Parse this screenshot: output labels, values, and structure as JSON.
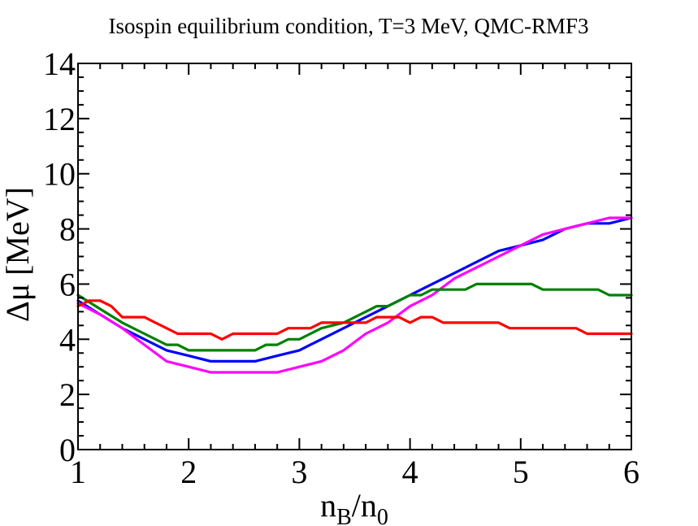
{
  "chart_data": {
    "type": "line",
    "title": "Isospin equilibrium condition, T=3 MeV, QMC-RMF3",
    "xlabel": {
      "base": "n",
      "sub1": "B",
      "sep": "/n",
      "sub2": "0"
    },
    "ylabel": {
      "symbol": "Δμ",
      "unit": " [MeV]"
    },
    "xlim": [
      1,
      6
    ],
    "ylim": [
      0,
      14
    ],
    "xticks": [
      1,
      2,
      3,
      4,
      5,
      6
    ],
    "yticks": [
      0,
      2,
      4,
      6,
      8,
      10,
      12,
      14
    ],
    "xtick_labels": [
      "1",
      "2",
      "3",
      "4",
      "5",
      "6"
    ],
    "ytick_labels": [
      "0",
      "2",
      "4",
      "6",
      "8",
      "10",
      "12",
      "14"
    ],
    "x_minor_step": 0.2,
    "y_minor_step": 0.5,
    "grid": false,
    "legend": "none",
    "series": [
      {
        "name": "blue",
        "color": "#0000ff",
        "x": [
          1.0,
          1.2,
          1.4,
          1.6,
          1.8,
          2.0,
          2.2,
          2.4,
          2.6,
          2.8,
          3.0,
          3.2,
          3.4,
          3.6,
          3.8,
          4.0,
          4.2,
          4.4,
          4.6,
          4.8,
          5.0,
          5.2,
          5.4,
          5.6,
          5.8,
          6.0
        ],
        "y": [
          5.4,
          4.9,
          4.4,
          4.0,
          3.6,
          3.4,
          3.2,
          3.2,
          3.2,
          3.4,
          3.6,
          4.0,
          4.4,
          4.8,
          5.2,
          5.6,
          6.0,
          6.4,
          6.8,
          7.2,
          7.4,
          7.6,
          8.0,
          8.2,
          8.2,
          8.4
        ]
      },
      {
        "name": "magenta",
        "color": "#ff00ff",
        "x": [
          1.0,
          1.2,
          1.4,
          1.6,
          1.8,
          2.0,
          2.2,
          2.4,
          2.6,
          2.8,
          3.0,
          3.2,
          3.4,
          3.6,
          3.8,
          4.0,
          4.2,
          4.4,
          4.6,
          4.8,
          5.0,
          5.2,
          5.4,
          5.6,
          5.8,
          6.0
        ],
        "y": [
          5.3,
          4.9,
          4.4,
          3.8,
          3.2,
          3.0,
          2.8,
          2.8,
          2.8,
          2.8,
          3.0,
          3.2,
          3.6,
          4.2,
          4.6,
          5.2,
          5.6,
          6.2,
          6.6,
          7.0,
          7.4,
          7.8,
          8.0,
          8.2,
          8.4,
          8.4
        ]
      },
      {
        "name": "green",
        "color": "#008000",
        "x": [
          1.0,
          1.2,
          1.4,
          1.6,
          1.8,
          1.9,
          2.0,
          2.1,
          2.2,
          2.4,
          2.6,
          2.7,
          2.8,
          2.9,
          3.0,
          3.2,
          3.4,
          3.6,
          3.7,
          3.8,
          4.0,
          4.1,
          4.2,
          4.4,
          4.5,
          4.6,
          4.8,
          5.0,
          5.1,
          5.2,
          5.4,
          5.6,
          5.7,
          5.8,
          6.0
        ],
        "y": [
          5.6,
          5.1,
          4.6,
          4.2,
          3.8,
          3.8,
          3.6,
          3.6,
          3.6,
          3.6,
          3.6,
          3.8,
          3.8,
          4.0,
          4.0,
          4.4,
          4.6,
          5.0,
          5.2,
          5.2,
          5.6,
          5.6,
          5.8,
          5.8,
          5.8,
          6.0,
          6.0,
          6.0,
          6.0,
          5.8,
          5.8,
          5.8,
          5.8,
          5.6,
          5.6
        ]
      },
      {
        "name": "red",
        "color": "#ff0000",
        "x": [
          1.0,
          1.1,
          1.2,
          1.3,
          1.4,
          1.5,
          1.6,
          1.7,
          1.8,
          1.9,
          2.0,
          2.1,
          2.2,
          2.3,
          2.4,
          2.5,
          2.6,
          2.7,
          2.8,
          2.9,
          3.0,
          3.1,
          3.2,
          3.3,
          3.4,
          3.5,
          3.6,
          3.7,
          3.8,
          3.9,
          4.0,
          4.1,
          4.2,
          4.3,
          4.4,
          4.5,
          4.6,
          4.7,
          4.8,
          4.9,
          5.0,
          5.1,
          5.2,
          5.3,
          5.4,
          5.5,
          5.6,
          5.7,
          5.8,
          5.9,
          6.0
        ],
        "y": [
          5.2,
          5.4,
          5.4,
          5.2,
          4.8,
          4.8,
          4.8,
          4.6,
          4.4,
          4.2,
          4.2,
          4.2,
          4.2,
          4.0,
          4.2,
          4.2,
          4.2,
          4.2,
          4.2,
          4.4,
          4.4,
          4.4,
          4.6,
          4.6,
          4.6,
          4.6,
          4.6,
          4.8,
          4.8,
          4.8,
          4.6,
          4.8,
          4.8,
          4.6,
          4.6,
          4.6,
          4.6,
          4.6,
          4.6,
          4.4,
          4.4,
          4.4,
          4.4,
          4.4,
          4.4,
          4.4,
          4.2,
          4.2,
          4.2,
          4.2,
          4.2
        ]
      }
    ]
  }
}
